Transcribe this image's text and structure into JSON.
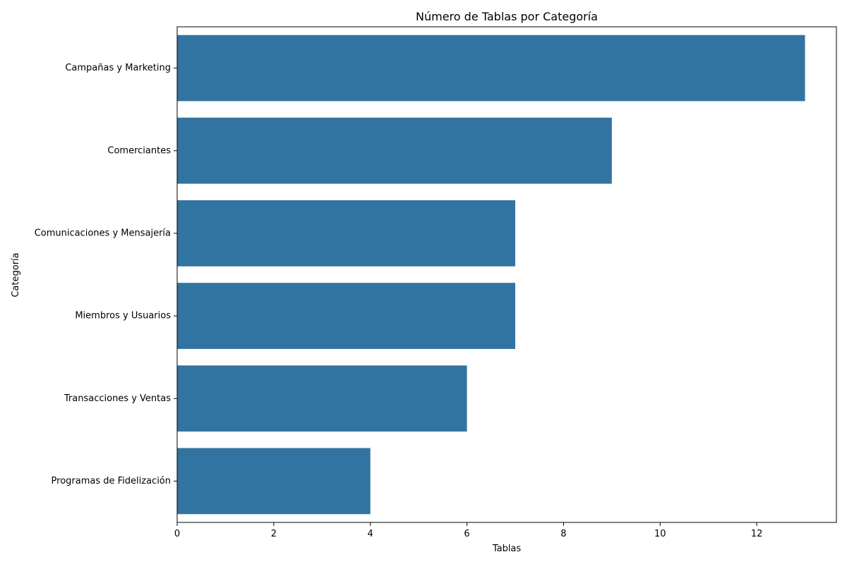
{
  "chart_data": {
    "type": "bar",
    "orientation": "horizontal",
    "title": "Número de Tablas por Categoría",
    "xlabel": "Tablas",
    "ylabel": "Categoría",
    "categories": [
      "Campañas y Marketing",
      "Comerciantes",
      "Comunicaciones y Mensajería",
      "Miembros y Usuarios",
      "Transacciones y Ventas",
      "Programas de Fidelización"
    ],
    "values": [
      13,
      9,
      7,
      7,
      6,
      4
    ],
    "xlim": [
      0,
      13.65
    ],
    "xticks": [
      0,
      2,
      4,
      6,
      8,
      10,
      12
    ],
    "grid": false,
    "bar_color": "#3274a1"
  }
}
